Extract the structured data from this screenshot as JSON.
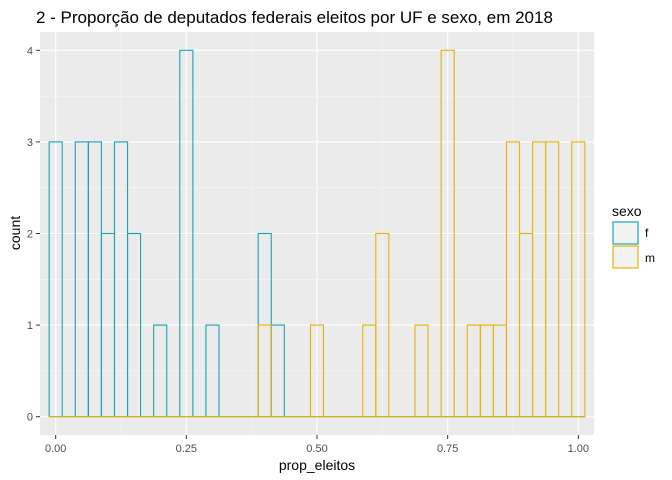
{
  "chart_data": {
    "type": "histogram",
    "title": "2  - Proporção de deputados federais eleitos por UF e sexo, em 2018",
    "xlabel": "prop_eleitos",
    "ylabel": "count",
    "xlim": [
      -0.03,
      1.03
    ],
    "ylim": [
      -0.2,
      4.2
    ],
    "x_ticks": [
      0.0,
      0.25,
      0.5,
      0.75,
      1.0
    ],
    "x_tick_labels": [
      "0.00",
      "0.25",
      "0.50",
      "0.75",
      "1.00"
    ],
    "y_ticks": [
      0,
      1,
      2,
      3,
      4
    ],
    "y_tick_labels": [
      "0",
      "1",
      "2",
      "3",
      "4"
    ],
    "grid": true,
    "legend_position": "right",
    "bin_edges": [
      -0.0125,
      0.0125,
      0.0375,
      0.0625,
      0.0875,
      0.1125,
      0.1375,
      0.1625,
      0.1875,
      0.2125,
      0.2375,
      0.2625,
      0.2875,
      0.3125,
      0.3375,
      0.3625,
      0.3875,
      0.4125,
      0.4375,
      0.4625,
      0.4875,
      0.5125,
      0.5375,
      0.5625,
      0.5875,
      0.6125,
      0.6375,
      0.6625,
      0.6875,
      0.7125,
      0.7375,
      0.7625,
      0.7875,
      0.8125,
      0.8375,
      0.8625,
      0.8875,
      0.9125,
      0.9375,
      0.9625,
      0.9875,
      1.0125
    ],
    "legend": {
      "title": "sexo"
    },
    "series": [
      {
        "name": "f",
        "color": "#1aa3b8",
        "counts": [
          3,
          0,
          3,
          3,
          2,
          3,
          2,
          0,
          1,
          0,
          4,
          0,
          1,
          0,
          0,
          0,
          2,
          1,
          0,
          0,
          0,
          0,
          0,
          0,
          0,
          0,
          0,
          0,
          0,
          0,
          0,
          0,
          0,
          0,
          0,
          0,
          0,
          0,
          0,
          0,
          0
        ]
      },
      {
        "name": "m",
        "color": "#e6b400",
        "counts": [
          0,
          0,
          0,
          0,
          0,
          0,
          0,
          0,
          0,
          0,
          0,
          0,
          0,
          0,
          0,
          0,
          1,
          0,
          0,
          0,
          1,
          0,
          0,
          0,
          1,
          2,
          0,
          0,
          1,
          0,
          4,
          0,
          1,
          1,
          1,
          3,
          2,
          3,
          3,
          0,
          3
        ]
      }
    ]
  }
}
